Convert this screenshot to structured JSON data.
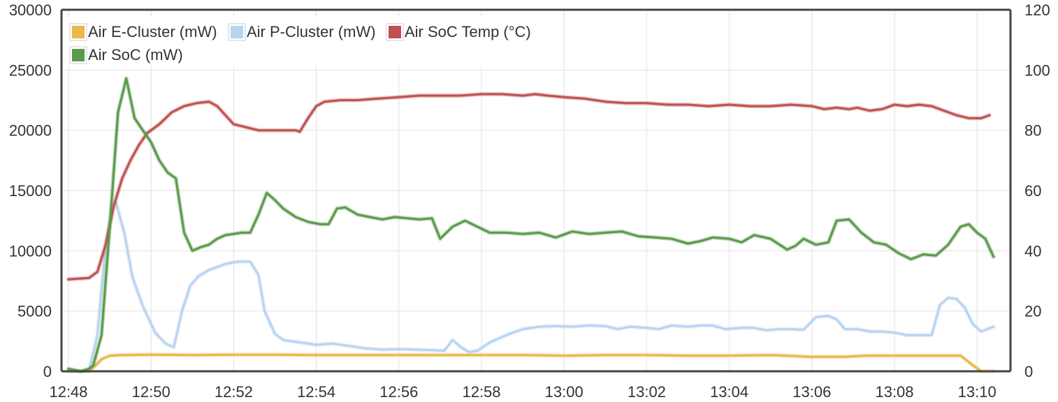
{
  "chart_data": {
    "type": "line",
    "title": "",
    "xlabel": "",
    "ylabel_left": "",
    "ylabel_right": "",
    "x_ticks": [
      "12:48",
      "12:50",
      "12:52",
      "12:54",
      "12:56",
      "12:58",
      "13:00",
      "13:02",
      "13:04",
      "13:06",
      "13:08",
      "13:10"
    ],
    "x_range_minutes": [
      0,
      22.6
    ],
    "y_left": {
      "range": [
        0,
        30000
      ],
      "ticks": [
        "0",
        "5000",
        "10000",
        "15000",
        "20000",
        "25000",
        "30000"
      ]
    },
    "y_right": {
      "range": [
        0,
        120
      ],
      "ticks": [
        "0",
        "20",
        "40",
        "60",
        "80",
        "100",
        "120"
      ]
    },
    "grid": true,
    "legend": {
      "placement": "top-left",
      "columns": 3
    },
    "series": [
      {
        "name": "Air E-Cluster (mW)",
        "color": "#e8b94a",
        "axis": "left",
        "points": [
          [
            0,
            0
          ],
          [
            0.3,
            0
          ],
          [
            0.5,
            0
          ],
          [
            0.6,
            300
          ],
          [
            0.8,
            1000
          ],
          [
            1.0,
            1300
          ],
          [
            1.3,
            1350
          ],
          [
            2.0,
            1380
          ],
          [
            3.0,
            1350
          ],
          [
            4.0,
            1380
          ],
          [
            5.0,
            1380
          ],
          [
            6.0,
            1350
          ],
          [
            7.0,
            1350
          ],
          [
            8.0,
            1350
          ],
          [
            9.0,
            1350
          ],
          [
            10.0,
            1350
          ],
          [
            11.0,
            1350
          ],
          [
            12.0,
            1300
          ],
          [
            13.0,
            1350
          ],
          [
            14.0,
            1350
          ],
          [
            15.0,
            1300
          ],
          [
            16.0,
            1300
          ],
          [
            17.0,
            1350
          ],
          [
            18.0,
            1200
          ],
          [
            18.8,
            1200
          ],
          [
            19.3,
            1300
          ],
          [
            20.0,
            1300
          ],
          [
            21.0,
            1300
          ],
          [
            21.6,
            1300
          ],
          [
            21.9,
            500
          ],
          [
            22.1,
            0
          ],
          [
            22.4,
            0
          ]
        ]
      },
      {
        "name": "Air P-Cluster (mW)",
        "color": "#b8d4f0",
        "axis": "left",
        "points": [
          [
            0,
            0
          ],
          [
            0.3,
            0
          ],
          [
            0.5,
            100
          ],
          [
            0.7,
            3000
          ],
          [
            0.9,
            10500
          ],
          [
            1.05,
            13600
          ],
          [
            1.15,
            14000
          ],
          [
            1.35,
            11500
          ],
          [
            1.55,
            7800
          ],
          [
            1.8,
            5400
          ],
          [
            2.1,
            3200
          ],
          [
            2.35,
            2300
          ],
          [
            2.55,
            2000
          ],
          [
            2.75,
            5000
          ],
          [
            2.95,
            7100
          ],
          [
            3.15,
            7900
          ],
          [
            3.4,
            8400
          ],
          [
            3.8,
            8900
          ],
          [
            4.1,
            9100
          ],
          [
            4.4,
            9100
          ],
          [
            4.6,
            8000
          ],
          [
            4.75,
            5000
          ],
          [
            5.0,
            3100
          ],
          [
            5.2,
            2600
          ],
          [
            5.6,
            2400
          ],
          [
            6.0,
            2200
          ],
          [
            6.4,
            2300
          ],
          [
            6.8,
            2100
          ],
          [
            7.2,
            1900
          ],
          [
            7.6,
            1800
          ],
          [
            8.0,
            1850
          ],
          [
            8.4,
            1800
          ],
          [
            8.8,
            1750
          ],
          [
            9.1,
            1700
          ],
          [
            9.3,
            2600
          ],
          [
            9.5,
            2000
          ],
          [
            9.7,
            1600
          ],
          [
            9.9,
            1700
          ],
          [
            10.2,
            2400
          ],
          [
            10.6,
            3000
          ],
          [
            11.0,
            3500
          ],
          [
            11.4,
            3700
          ],
          [
            11.8,
            3750
          ],
          [
            12.2,
            3700
          ],
          [
            12.6,
            3800
          ],
          [
            13.0,
            3750
          ],
          [
            13.3,
            3500
          ],
          [
            13.6,
            3700
          ],
          [
            14.0,
            3600
          ],
          [
            14.3,
            3500
          ],
          [
            14.6,
            3800
          ],
          [
            15.0,
            3700
          ],
          [
            15.3,
            3800
          ],
          [
            15.6,
            3800
          ],
          [
            15.9,
            3500
          ],
          [
            16.3,
            3600
          ],
          [
            16.6,
            3600
          ],
          [
            16.9,
            3400
          ],
          [
            17.2,
            3500
          ],
          [
            17.5,
            3500
          ],
          [
            17.8,
            3450
          ],
          [
            18.1,
            4500
          ],
          [
            18.4,
            4600
          ],
          [
            18.6,
            4300
          ],
          [
            18.8,
            3500
          ],
          [
            19.1,
            3500
          ],
          [
            19.4,
            3300
          ],
          [
            19.7,
            3300
          ],
          [
            20.0,
            3200
          ],
          [
            20.3,
            3000
          ],
          [
            20.6,
            3000
          ],
          [
            20.9,
            3000
          ],
          [
            21.1,
            5500
          ],
          [
            21.3,
            6100
          ],
          [
            21.5,
            6000
          ],
          [
            21.7,
            5300
          ],
          [
            21.9,
            3900
          ],
          [
            22.1,
            3300
          ],
          [
            22.4,
            3700
          ]
        ]
      },
      {
        "name": "Air SoC Temp (°C)",
        "color": "#c05050",
        "axis": "right",
        "points": [
          [
            0,
            30.5
          ],
          [
            0.5,
            31
          ],
          [
            0.7,
            33
          ],
          [
            0.9,
            42
          ],
          [
            1.1,
            55
          ],
          [
            1.3,
            64
          ],
          [
            1.5,
            70
          ],
          [
            1.7,
            75
          ],
          [
            1.9,
            79
          ],
          [
            2.2,
            82
          ],
          [
            2.5,
            86
          ],
          [
            2.8,
            88
          ],
          [
            3.1,
            89
          ],
          [
            3.4,
            89.5
          ],
          [
            3.6,
            88
          ],
          [
            3.8,
            85
          ],
          [
            4.0,
            82
          ],
          [
            4.3,
            81
          ],
          [
            4.6,
            80
          ],
          [
            4.9,
            80
          ],
          [
            5.1,
            80
          ],
          [
            5.3,
            80
          ],
          [
            5.5,
            80
          ],
          [
            5.6,
            79.5
          ],
          [
            5.8,
            84
          ],
          [
            6.0,
            88
          ],
          [
            6.2,
            89.5
          ],
          [
            6.6,
            90
          ],
          [
            7.0,
            90
          ],
          [
            7.5,
            90.5
          ],
          [
            8.0,
            91
          ],
          [
            8.5,
            91.5
          ],
          [
            9.0,
            91.5
          ],
          [
            9.5,
            91.5
          ],
          [
            10.0,
            92
          ],
          [
            10.5,
            92
          ],
          [
            11.0,
            91.5
          ],
          [
            11.3,
            92
          ],
          [
            11.6,
            91.5
          ],
          [
            12.0,
            91
          ],
          [
            12.5,
            90.5
          ],
          [
            13.0,
            89.5
          ],
          [
            13.5,
            89
          ],
          [
            14.0,
            89
          ],
          [
            14.5,
            88.5
          ],
          [
            15.0,
            88.5
          ],
          [
            15.5,
            88
          ],
          [
            16.0,
            88.5
          ],
          [
            16.5,
            88
          ],
          [
            17.0,
            88
          ],
          [
            17.5,
            88.5
          ],
          [
            18.0,
            88
          ],
          [
            18.3,
            87
          ],
          [
            18.6,
            87.5
          ],
          [
            18.9,
            87
          ],
          [
            19.1,
            87.5
          ],
          [
            19.4,
            86.5
          ],
          [
            19.7,
            87
          ],
          [
            20.0,
            88.5
          ],
          [
            20.3,
            88
          ],
          [
            20.6,
            88.5
          ],
          [
            20.9,
            88
          ],
          [
            21.2,
            86.5
          ],
          [
            21.5,
            85
          ],
          [
            21.8,
            84
          ],
          [
            22.1,
            84
          ],
          [
            22.3,
            85
          ]
        ]
      },
      {
        "name": "Air SoC (mW)",
        "color": "#5a9a4a",
        "axis": "left",
        "points": [
          [
            0,
            200
          ],
          [
            0.3,
            0
          ],
          [
            0.5,
            200
          ],
          [
            0.6,
            500
          ],
          [
            0.8,
            3000
          ],
          [
            1.0,
            12000
          ],
          [
            1.2,
            21500
          ],
          [
            1.4,
            24300
          ],
          [
            1.6,
            21000
          ],
          [
            1.8,
            20000
          ],
          [
            2.0,
            19000
          ],
          [
            2.2,
            17500
          ],
          [
            2.4,
            16500
          ],
          [
            2.6,
            16000
          ],
          [
            2.8,
            11500
          ],
          [
            3.0,
            10000
          ],
          [
            3.2,
            10300
          ],
          [
            3.4,
            10500
          ],
          [
            3.6,
            11000
          ],
          [
            3.8,
            11300
          ],
          [
            4.0,
            11400
          ],
          [
            4.2,
            11500
          ],
          [
            4.4,
            11500
          ],
          [
            4.6,
            13000
          ],
          [
            4.8,
            14800
          ],
          [
            5.0,
            14200
          ],
          [
            5.2,
            13500
          ],
          [
            5.5,
            12800
          ],
          [
            5.8,
            12400
          ],
          [
            6.1,
            12200
          ],
          [
            6.3,
            12200
          ],
          [
            6.5,
            13500
          ],
          [
            6.7,
            13600
          ],
          [
            7.0,
            13000
          ],
          [
            7.3,
            12800
          ],
          [
            7.6,
            12600
          ],
          [
            7.9,
            12800
          ],
          [
            8.2,
            12700
          ],
          [
            8.5,
            12600
          ],
          [
            8.8,
            12700
          ],
          [
            9.0,
            11000
          ],
          [
            9.3,
            12000
          ],
          [
            9.6,
            12500
          ],
          [
            9.9,
            12000
          ],
          [
            10.2,
            11500
          ],
          [
            10.6,
            11500
          ],
          [
            11.0,
            11400
          ],
          [
            11.4,
            11500
          ],
          [
            11.8,
            11100
          ],
          [
            12.2,
            11600
          ],
          [
            12.6,
            11400
          ],
          [
            13.0,
            11500
          ],
          [
            13.4,
            11600
          ],
          [
            13.8,
            11200
          ],
          [
            14.2,
            11100
          ],
          [
            14.6,
            11000
          ],
          [
            15.0,
            10600
          ],
          [
            15.3,
            10800
          ],
          [
            15.6,
            11100
          ],
          [
            16.0,
            11000
          ],
          [
            16.3,
            10700
          ],
          [
            16.6,
            11300
          ],
          [
            17.0,
            11000
          ],
          [
            17.4,
            10100
          ],
          [
            17.6,
            10400
          ],
          [
            17.8,
            11000
          ],
          [
            18.1,
            10500
          ],
          [
            18.4,
            10700
          ],
          [
            18.6,
            12500
          ],
          [
            18.9,
            12600
          ],
          [
            19.2,
            11500
          ],
          [
            19.5,
            10700
          ],
          [
            19.8,
            10500
          ],
          [
            20.1,
            9800
          ],
          [
            20.4,
            9300
          ],
          [
            20.7,
            9700
          ],
          [
            21.0,
            9600
          ],
          [
            21.3,
            10500
          ],
          [
            21.6,
            12000
          ],
          [
            21.8,
            12200
          ],
          [
            22.0,
            11500
          ],
          [
            22.2,
            11000
          ],
          [
            22.4,
            9500
          ]
        ]
      }
    ]
  }
}
